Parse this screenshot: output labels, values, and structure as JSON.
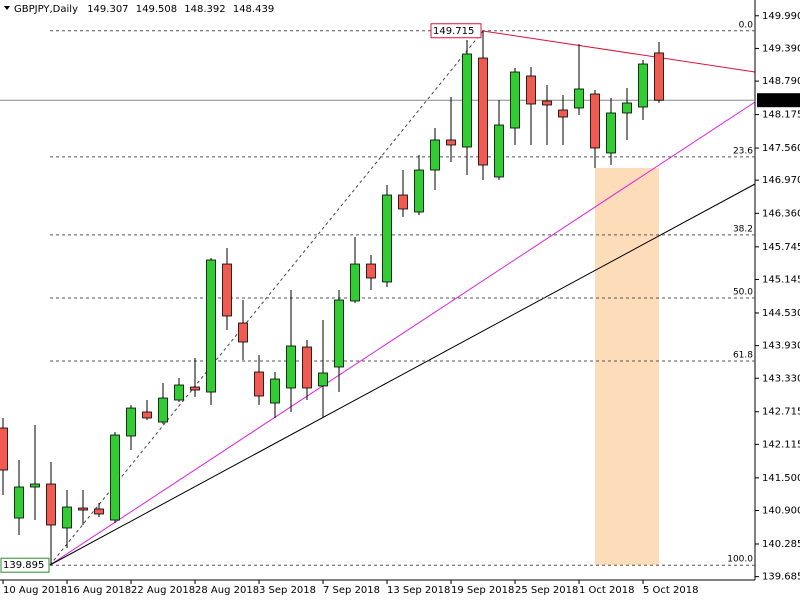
{
  "chart_data": {
    "type": "candlestick",
    "title": "GBPJPY,Daily",
    "categories": [
      "10 Aug 2018",
      null,
      null,
      null,
      "16 Aug 2018",
      null,
      null,
      null,
      "22 Aug 2018",
      null,
      null,
      null,
      "28 Aug 2018",
      null,
      null,
      null,
      "3 Sep 2018",
      null,
      null,
      null,
      "7 Sep 2018",
      null,
      null,
      null,
      "13 Sep 2018",
      null,
      null,
      null,
      "19 Sep 2018",
      null,
      null,
      null,
      "25 Sep 2018",
      null,
      null,
      null,
      "1 Oct 2018",
      null,
      null,
      null,
      "5 Oct 2018",
      null
    ],
    "open": [
      142.416,
      140.762,
      141.332,
      141.387,
      140.579,
      140.946,
      140.928,
      140.725,
      142.269,
      142.71,
      142.526,
      142.93,
      143.169,
      143.077,
      145.429,
      144.345,
      143.445,
      142.875,
      143.151,
      143.904,
      143.188,
      143.537,
      144.75,
      145.429,
      145.099,
      146.697,
      146.385,
      147.156,
      147.708,
      147.579,
      149.214,
      147.028,
      147.928,
      148.884,
      148.424,
      148.259,
      148.296,
      148.553,
      147.469,
      148.204,
      148.314,
      149.307
    ],
    "high": [
      142.6,
      141.828,
      142.471,
      141.791,
      141.277,
      141.277,
      141.038,
      142.342,
      142.838,
      142.93,
      143.243,
      143.335,
      143.702,
      145.54,
      145.723,
      144.768,
      143.757,
      143.445,
      144.952,
      144.033,
      144.4,
      144.952,
      145.926,
      145.595,
      146.881,
      147.156,
      147.432,
      147.928,
      148.498,
      149.545,
      149.715,
      148.443,
      149.031,
      149.049,
      148.718,
      148.535,
      149.472,
      148.626,
      148.479,
      148.663,
      149.178,
      149.508
    ],
    "low": [
      141.185,
      140.45,
      140.725,
      139.895,
      140.211,
      140.634,
      140.781,
      140.67,
      142.012,
      142.563,
      142.49,
      142.894,
      142.986,
      142.838,
      144.217,
      143.665,
      142.838,
      142.6,
      142.71,
      142.93,
      142.6,
      143.077,
      144.713,
      144.952,
      145.007,
      146.293,
      146.33,
      146.789,
      147.303,
      147.064,
      146.973,
      146.973,
      147.616,
      147.616,
      147.616,
      147.616,
      148.167,
      147.193,
      147.248,
      147.708,
      148.075,
      148.392
    ],
    "close": [
      141.644,
      141.332,
      141.387,
      140.634,
      140.964,
      140.909,
      140.836,
      142.287,
      142.783,
      142.6,
      142.967,
      143.206,
      143.114,
      145.503,
      144.474,
      143.996,
      143.004,
      143.316,
      143.923,
      143.151,
      143.427,
      144.768,
      145.429,
      145.172,
      146.697,
      146.44,
      147.156,
      147.708,
      147.616,
      149.288,
      147.248,
      147.983,
      148.957,
      148.369,
      148.351,
      148.13,
      148.645,
      147.561,
      148.204,
      148.388,
      149.104,
      148.439
    ],
    "up_color": "#32cd32",
    "down_color": "#f05a50",
    "ylim": [
      139.66,
      150.28
    ],
    "yticks": [
      {
        "value": 149.99,
        "label": "149.990"
      },
      {
        "value": 149.39,
        "label": "149.390"
      },
      {
        "value": 148.79,
        "label": "148.790"
      },
      148.175,
      {
        "value": 147.56,
        "label": "147.560"
      },
      {
        "value": 146.97,
        "label": "146.970"
      },
      {
        "value": 146.36,
        "label": "146.360"
      },
      145.745,
      145.145,
      {
        "value": 144.53,
        "label": "144.530"
      },
      {
        "value": 143.93,
        "label": "143.930"
      },
      {
        "value": 143.33,
        "label": "143.330"
      },
      142.715,
      142.115,
      {
        "value": 141.5,
        "label": "141.500"
      },
      {
        "value": 140.9,
        "label": "140.900"
      },
      140.285,
      139.685
    ],
    "fibonacci": {
      "high": 149.715,
      "low": 139.895,
      "levels": [
        {
          "value": 0,
          "label": "0.0"
        },
        23.6,
        38.2,
        {
          "value": 50,
          "label": "50.0"
        },
        61.8,
        {
          "value": 100,
          "label": "100.0"
        }
      ]
    }
  }
}
